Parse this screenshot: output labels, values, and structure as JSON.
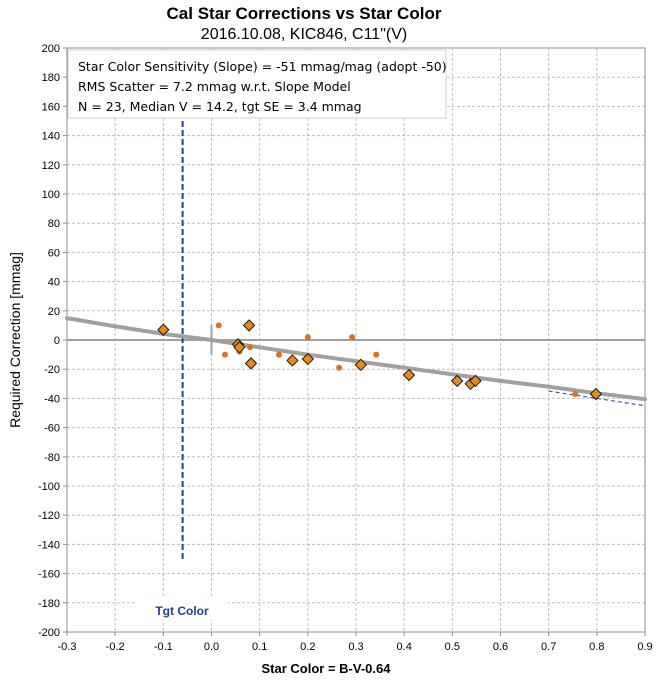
{
  "chart_data": {
    "type": "scatter",
    "title": "Cal Star Corrections vs Star Color",
    "subtitle": "2016.10.08, KIC846, C11\"(V)",
    "xlabel": "Star Color = B-V-0.64",
    "ylabel": "Required Correction [mmag]",
    "xlim": [
      -0.3,
      0.9
    ],
    "ylim": [
      -200,
      200
    ],
    "x_ticks": [
      "-0.3",
      "-0.2",
      "-0.1",
      "0.0",
      "0.1",
      "0.2",
      "0.3",
      "0.4",
      "0.5",
      "0.6",
      "0.7",
      "0.8",
      "0.9"
    ],
    "y_ticks": [
      "200",
      "180",
      "160",
      "140",
      "120",
      "100",
      "80",
      "60",
      "40",
      "20",
      "0",
      "-20",
      "-40",
      "-60",
      "-80",
      "-100",
      "-120",
      "-140",
      "-160",
      "-180",
      "-200"
    ],
    "grid": true,
    "info_box": [
      "Star Color Sensitivity (Slope)  =  -51 mmag/mag (adopt -50)",
      "RMS Scatter = 7.2 mmag w.r.t. Slope Model",
      "N = 23,  Median V = 14.2, tgt SE = 3.4 mmag"
    ],
    "target_color": {
      "label": "Tgt Color",
      "x": -0.06,
      "y_range": [
        -150,
        150
      ],
      "color": "#1f3f8f"
    },
    "series": [
      {
        "marker": "diamond",
        "color": "#e8891c",
        "points": [
          [
            -0.1,
            7
          ],
          [
            0.055,
            -3
          ],
          [
            0.058,
            -5
          ],
          [
            0.078,
            10
          ],
          [
            0.082,
            -16
          ],
          [
            0.168,
            -14
          ],
          [
            0.2,
            -13
          ],
          [
            0.31,
            -17
          ],
          [
            0.41,
            -24
          ],
          [
            0.51,
            -28
          ],
          [
            0.538,
            -30
          ],
          [
            0.548,
            -28
          ],
          [
            0.798,
            -37
          ]
        ]
      },
      {
        "marker": "dot",
        "color": "#e07020",
        "points": [
          [
            0.015,
            10
          ],
          [
            0.028,
            -10
          ],
          [
            0.058,
            -8
          ],
          [
            0.08,
            -5
          ],
          [
            0.14,
            -10
          ],
          [
            0.2,
            2
          ],
          [
            0.265,
            -19
          ],
          [
            0.292,
            2
          ],
          [
            0.342,
            -10
          ],
          [
            0.755,
            -37
          ]
        ]
      }
    ],
    "model_curve": [
      [
        -0.3,
        15
      ],
      [
        -0.2,
        9.4
      ],
      [
        -0.1,
        4.2
      ],
      [
        0.0,
        0
      ],
      [
        0.1,
        -5
      ],
      [
        0.2,
        -10
      ],
      [
        0.3,
        -14.5
      ],
      [
        0.4,
        -19
      ],
      [
        0.5,
        -23.5
      ],
      [
        0.6,
        -28
      ],
      [
        0.7,
        -32
      ],
      [
        0.8,
        -36.5
      ],
      [
        0.9,
        -40.5
      ]
    ],
    "slope_line": {
      "slope": -50,
      "x_start": 0.7,
      "x_end": 0.9,
      "color": "#4a5aaa"
    },
    "zero_line_color": "#a0a0a0",
    "model_color": "#a0a0a0"
  }
}
